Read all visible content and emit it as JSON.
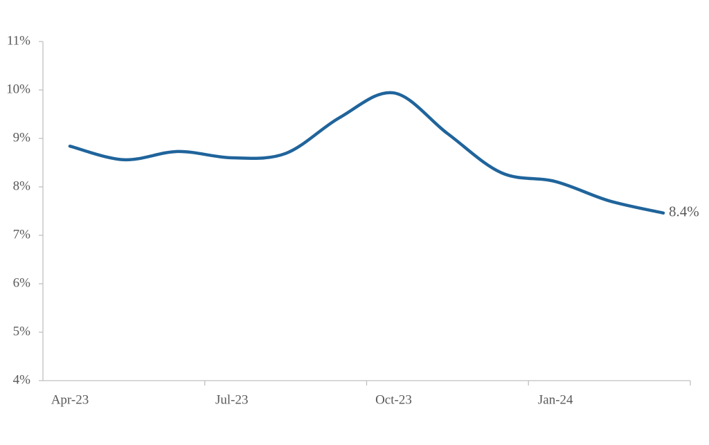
{
  "chart_data": {
    "type": "line",
    "categories": [
      "Apr-23",
      null,
      null,
      "Jul-23",
      null,
      null,
      "Oct-23",
      null,
      null,
      "Jan-24",
      null,
      null
    ],
    "series": [
      {
        "color": "#20649b",
        "values": [
          8.84,
          8.56,
          8.73,
          8.6,
          8.69,
          9.43,
          9.94,
          9.1,
          8.29,
          8.11,
          7.71,
          7.46
        ]
      }
    ],
    "annotation": "8.4%",
    "ylim": [
      4,
      11
    ],
    "yticks": [
      {
        "value": 4,
        "label": "4%"
      },
      {
        "value": 5,
        "label": "5%"
      },
      {
        "value": 6,
        "label": "6%"
      },
      {
        "value": 7,
        "label": "7%"
      },
      {
        "value": 8,
        "label": "8%"
      },
      {
        "value": 9,
        "label": "9%"
      },
      {
        "value": 10,
        "label": "10%"
      },
      {
        "value": 11,
        "label": "11%"
      }
    ],
    "grid": false
  }
}
